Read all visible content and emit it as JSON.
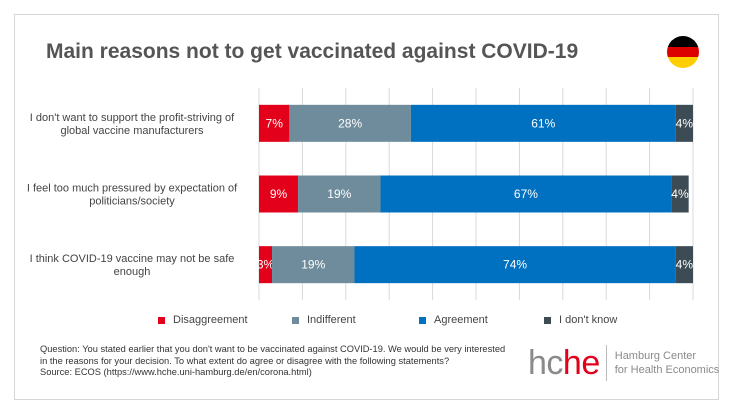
{
  "chart_data": {
    "type": "bar",
    "orientation": "horizontal",
    "stacked": true,
    "title": "Main reasons not to get vaccinated against COVID-19",
    "categories": [
      [
        "I don't want to support the profit-striving of",
        "global vaccine manufacturers"
      ],
      [
        "I feel too much pressured by expectation of",
        "politicians/society"
      ],
      [
        "I think COVID-19 vaccine may not be safe",
        "enough"
      ]
    ],
    "series": [
      {
        "name": "Disaggreement",
        "color": "#e2001a",
        "values": [
          7,
          9,
          3
        ]
      },
      {
        "name": "Indifferent",
        "color": "#6e8c9b",
        "values": [
          28,
          19,
          19
        ]
      },
      {
        "name": "Agreement",
        "color": "#0070c0",
        "values": [
          61,
          67,
          74
        ]
      },
      {
        "name": "I don't know",
        "color": "#3d4b54",
        "values": [
          4,
          4,
          4
        ]
      }
    ],
    "value_suffix": "%",
    "xlim": [
      0,
      100
    ],
    "grid": true,
    "legend_position": "bottom"
  },
  "footnote": {
    "lines": [
      "Question: You stated earlier that you don't want to be vaccinated against COVID-19. We would be very interested",
      "in the reasons for your decision. To what extent do agree or disagree with the following statements?",
      "Source: ECOS (https://www.hche.uni-hamburg.de/en/corona.html)"
    ]
  },
  "logo": {
    "mark_gray": "hc",
    "mark_red": "he",
    "line1": "Hamburg Center",
    "line2": "for Health Economics"
  },
  "flag_colors": [
    "#000000",
    "#dd0000",
    "#ffce00"
  ]
}
